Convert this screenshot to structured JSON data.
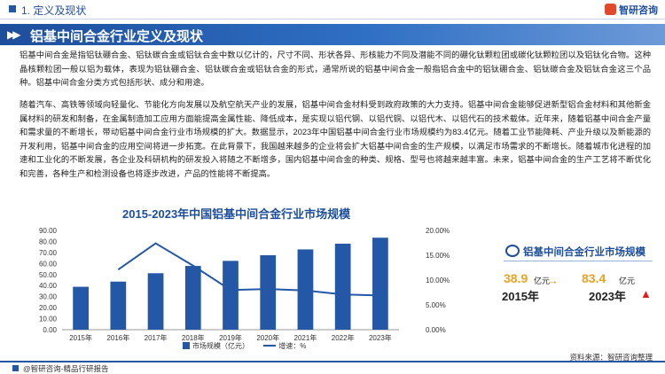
{
  "header": {
    "section": "1. 定义及现状",
    "logo": "智研咨询"
  },
  "title": "铝基中间合金行业定义及现状",
  "paragraphs": [
    "铝基中间合金是指铝钛硼合金、铝钛碳合金或铝钛合金中数以亿计的，尺寸不同、形状各异、形核能力不同及潜能不同的硼化钛颗粒团或碳化钛颗粒团以及铝钛化合物。这种晶核颗粒团一般以铝为载体，表现为铝钛硼合金、铝钛碳合金或铝钛合金的形式，通常所说的铝基中间合金一般指铝合金中的铝钛硼合金、铝钛碳合金及铝钛合金这三个品种。铝基中间合金分类方式包括形状、成分和用途。",
    "随着汽车、高铁等领域向轻量化、节能化方向发展以及航空航天产业的发展，铝基中间合金材料受到政府政策的大力支持。铝基中间合金能够促进新型铝合金材料和其他新金属材料的研发和制备，在金属制造加工应用方面能提高金属性能、降低成本，是实现以铝代钢、以铝代铜、以铝代木、以铝代石的技术载体。近年来，随着铝基中间合金产量和需求量的不断增长，带动铝基中间合金行业市场规模的扩大。数据显示，2023年中国铝基中间合金行业市场规模约为83.4亿元。随着工业节能降耗、产业升级以及新能源的开发利用，铝基中间合金的应用空间将进一步拓宽。在此背景下，我国越来越多的企业将会扩大铝基中间合金的生产规模，以满足市场需求的不断增长。随着城市化进程的加速和工业化的不断发展，各企业及科研机构的研发投入将随之不断增多，国内铝基中间合金的种类、规格、型号也将越来越丰富。未来，铝基中间合金的生产工艺将不断优化和完善，各种生产和检测设备也将逐步改进，产品的性能将不断提高。"
  ],
  "chart_data": {
    "type": "bar",
    "title": "2015-2023年中国铝基中间合金行业市场规模",
    "categories": [
      "2015年",
      "2016年",
      "2017年",
      "2018年",
      "2019年",
      "2020年",
      "2021年",
      "2022年",
      "2023年"
    ],
    "series": [
      {
        "name": "市场规模（亿元）",
        "type": "bar",
        "axis": "left",
        "values": [
          38.9,
          43.6,
          51.2,
          57.8,
          62.4,
          67.5,
          72.8,
          78.0,
          83.4
        ]
      },
      {
        "name": "增速：%",
        "type": "line",
        "axis": "right",
        "values": [
          null,
          12.1,
          17.4,
          12.9,
          8.0,
          8.2,
          7.9,
          7.1,
          6.9
        ]
      }
    ],
    "yticks_left": [
      "0.00",
      "10.00",
      "20.00",
      "30.00",
      "40.00",
      "50.00",
      "60.00",
      "70.00",
      "80.00",
      "90.00"
    ],
    "yticks_right": [
      "0.00%",
      "5.00%",
      "10.00%",
      "15.00%",
      "20.00%"
    ],
    "ylim_left": [
      0,
      90
    ],
    "ylim_right": [
      0,
      20
    ],
    "colors": {
      "bar": "#2458a6",
      "line": "#2458a6"
    },
    "grid": false
  },
  "side_panel": {
    "title": "铝基中间合金行业市场规模",
    "value_start": "38.9",
    "unit_start": "亿元",
    "year_start": "2015年",
    "value_end": "83.4",
    "unit_end": "亿元",
    "year_end": "2023年",
    "arrow": "→",
    "up_arrow": "▲"
  },
  "legend": {
    "bar": "市场规模（亿元）",
    "line": "增速：%"
  },
  "source": "资料来源：智研咨询整理",
  "footer": "@智研咨询-精品行研报告"
}
